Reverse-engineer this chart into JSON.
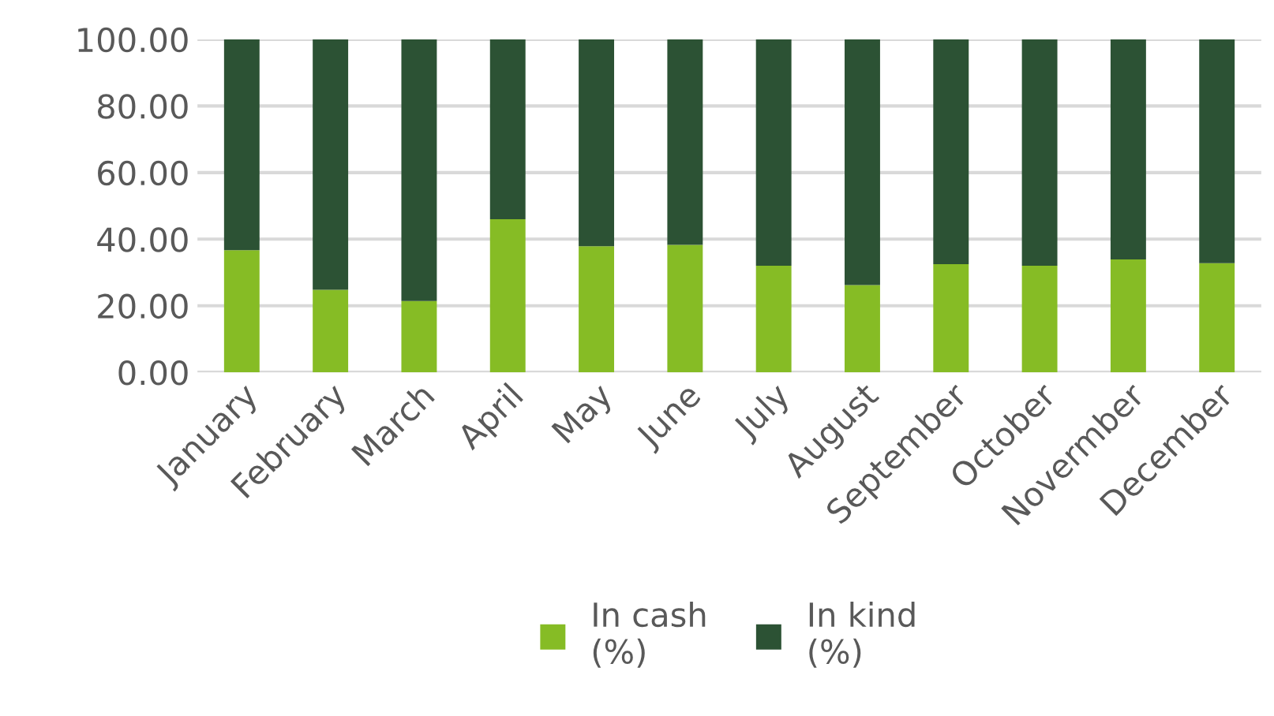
{
  "chart_data": {
    "type": "bar",
    "stacked": true,
    "categories": [
      "January",
      "February",
      "March",
      "April",
      "May",
      "June",
      "July",
      "August",
      "September",
      "October",
      "Novermber",
      "December"
    ],
    "series": [
      {
        "name": "In cash\n(%)",
        "color": "#86bc25",
        "values": [
          36.7,
          24.8,
          21.4,
          46.0,
          37.9,
          38.3,
          32.0,
          26.2,
          32.5,
          32.0,
          33.9,
          32.8
        ]
      },
      {
        "name": "In kind\n(%)",
        "color": "#2c5234",
        "values": [
          63.3,
          75.2,
          78.6,
          54.0,
          62.1,
          61.7,
          68.0,
          73.8,
          67.5,
          68.0,
          66.1,
          67.2
        ]
      }
    ],
    "ylim": [
      0,
      100
    ],
    "yticks": [
      {
        "value": 0,
        "label": "0.00"
      },
      {
        "value": 20,
        "label": "20.00"
      },
      {
        "value": 40,
        "label": "40.00"
      },
      {
        "value": 60,
        "label": "60.00"
      },
      {
        "value": 80,
        "label": "80.00"
      },
      {
        "value": 100,
        "label": "100.00"
      }
    ],
    "grid": "y",
    "legend": "bottom"
  }
}
